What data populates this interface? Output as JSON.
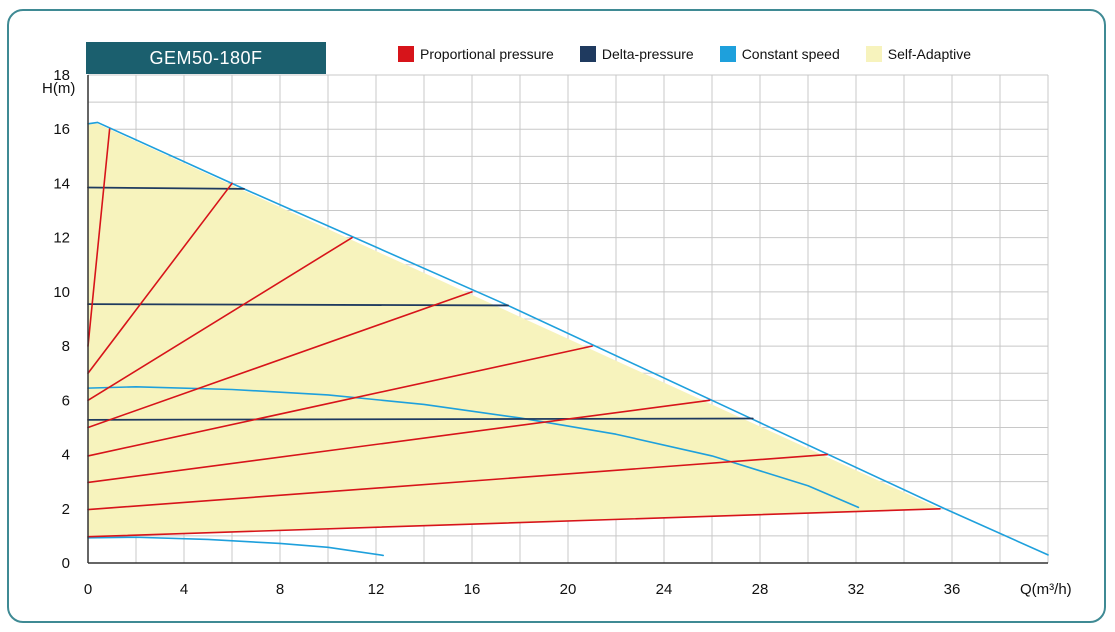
{
  "header": {
    "model_label": "GEM50-180F"
  },
  "colors": {
    "proportional": "#d7141a",
    "delta": "#1f3a5f",
    "constant": "#1ea0dc",
    "adaptive_fill": "#f7f3bd",
    "grid": "#c8c8c8"
  },
  "chart_data": {
    "type": "line",
    "title": "GEM50-180F",
    "xlabel": "Q(m³/h)",
    "ylabel": "H(m)",
    "xlim": [
      0,
      40
    ],
    "ylim": [
      0,
      18
    ],
    "x_ticks": [
      0,
      4,
      8,
      12,
      16,
      20,
      24,
      28,
      32,
      36
    ],
    "y_ticks": [
      0,
      2,
      4,
      6,
      8,
      10,
      12,
      14,
      16,
      18
    ],
    "grid": true,
    "legend_position": "top",
    "legend": [
      {
        "name": "Proportional pressure",
        "color": "#d7141a"
      },
      {
        "name": "Delta-pressure",
        "color": "#1f3a5f"
      },
      {
        "name": "Constant speed",
        "color": "#1ea0dc"
      },
      {
        "name": "Self-Adaptive",
        "color": "#f7f3bd"
      }
    ],
    "series": [
      {
        "group": "self-adaptive",
        "points": [
          [
            0,
            16.2
          ],
          [
            0.4,
            16.2
          ],
          [
            35.5,
            2.0
          ],
          [
            0,
            0.97
          ]
        ]
      },
      {
        "group": "constant-speed",
        "points": [
          [
            0,
            16.2
          ],
          [
            0.4,
            16.25
          ],
          [
            6.5,
            13.8
          ],
          [
            17.5,
            9.5
          ],
          [
            27.7,
            5.3
          ],
          [
            35.7,
            2.0
          ],
          [
            40,
            0.3
          ]
        ]
      },
      {
        "group": "constant-speed",
        "points": [
          [
            0,
            6.45
          ],
          [
            2,
            6.5
          ],
          [
            6,
            6.4
          ],
          [
            10,
            6.2
          ],
          [
            14,
            5.85
          ],
          [
            18,
            5.35
          ],
          [
            22,
            4.75
          ],
          [
            26,
            3.95
          ],
          [
            30,
            2.85
          ],
          [
            32.1,
            2.05
          ]
        ]
      },
      {
        "group": "constant-speed",
        "points": [
          [
            0,
            0.93
          ],
          [
            2,
            0.95
          ],
          [
            5,
            0.87
          ],
          [
            8,
            0.72
          ],
          [
            10,
            0.58
          ],
          [
            12.3,
            0.28
          ]
        ]
      },
      {
        "group": "delta-pressure",
        "points": [
          [
            0,
            13.85
          ],
          [
            6.5,
            13.8
          ]
        ]
      },
      {
        "group": "delta-pressure",
        "points": [
          [
            0,
            9.55
          ],
          [
            17.5,
            9.5
          ]
        ]
      },
      {
        "group": "delta-pressure",
        "points": [
          [
            0,
            5.28
          ],
          [
            27.7,
            5.33
          ]
        ]
      },
      {
        "group": "proportional",
        "points": [
          [
            0,
            8.0
          ],
          [
            0.9,
            16.0
          ]
        ]
      },
      {
        "group": "proportional",
        "points": [
          [
            0,
            7.0
          ],
          [
            6.0,
            14.0
          ]
        ]
      },
      {
        "group": "proportional",
        "points": [
          [
            0,
            6.0
          ],
          [
            11.0,
            12.0
          ]
        ]
      },
      {
        "group": "proportional",
        "points": [
          [
            0,
            5.0
          ],
          [
            16.0,
            10.0
          ]
        ]
      },
      {
        "group": "proportional",
        "points": [
          [
            0,
            3.95
          ],
          [
            21.0,
            8.0
          ]
        ]
      },
      {
        "group": "proportional",
        "points": [
          [
            0,
            2.97
          ],
          [
            25.9,
            6.0
          ]
        ]
      },
      {
        "group": "proportional",
        "points": [
          [
            0,
            1.97
          ],
          [
            30.8,
            4.0
          ]
        ]
      },
      {
        "group": "proportional",
        "points": [
          [
            0,
            0.97
          ],
          [
            35.5,
            2.0
          ]
        ]
      }
    ]
  }
}
